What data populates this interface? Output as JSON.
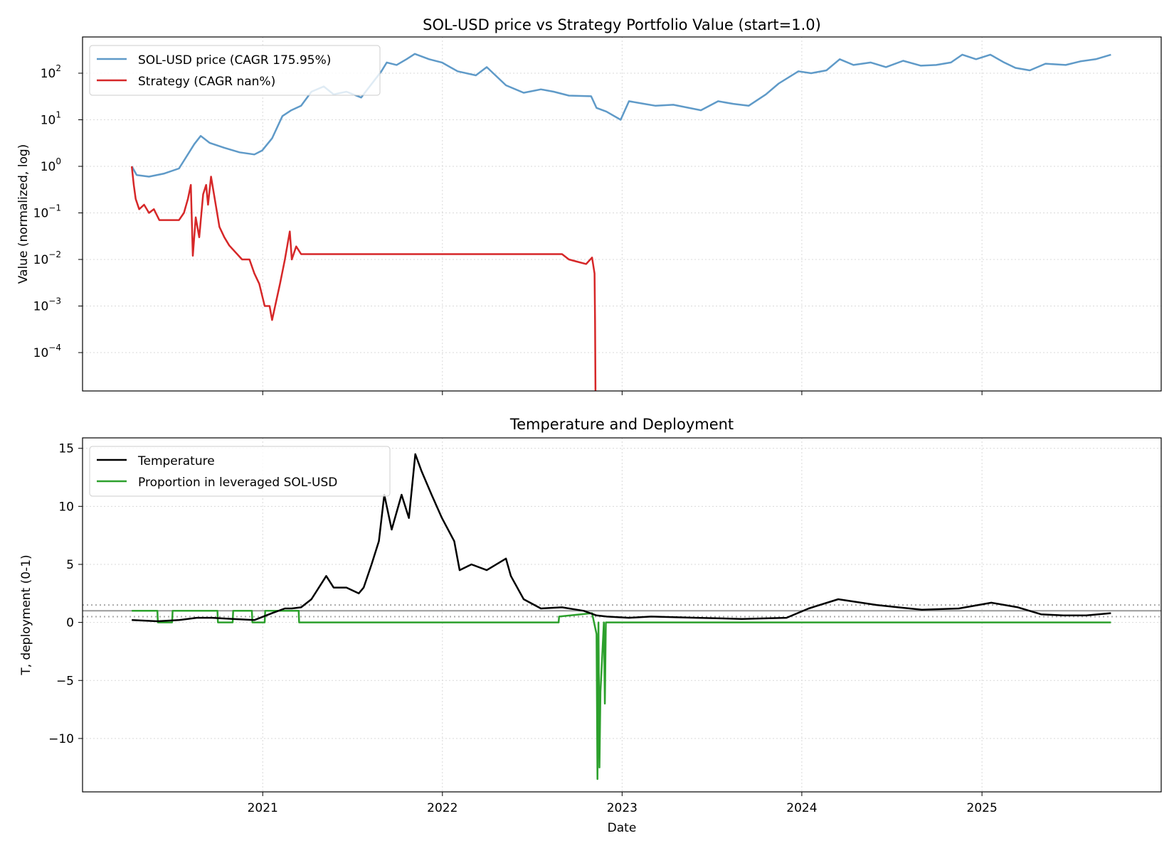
{
  "chart_data": [
    {
      "type": "line",
      "title": "SOL-USD price vs Strategy Portfolio Value (start=1.0)",
      "xlabel": "",
      "ylabel": "Value (normalized, log)",
      "yscale": "log",
      "grid": true,
      "legend_loc": "upper left",
      "xlim": [
        "2020-01-01",
        "2025-12-31"
      ],
      "ylim": [
        1.5e-05,
        600
      ],
      "yticks": [
        {
          "value": 0.0001,
          "base": "10",
          "exp": "−4"
        },
        {
          "value": 0.001,
          "base": "10",
          "exp": "−3"
        },
        {
          "value": 0.01,
          "base": "10",
          "exp": "−2"
        },
        {
          "value": 0.1,
          "base": "10",
          "exp": "−1"
        },
        {
          "value": 1,
          "base": "10",
          "exp": "0"
        },
        {
          "value": 10,
          "base": "10",
          "exp": "1"
        },
        {
          "value": 100,
          "base": "10",
          "exp": "2"
        }
      ],
      "series": [
        {
          "name": "SOL-USD price (CAGR 175.95%)",
          "color": "#5f9ac8",
          "x": [
            "2020-04-10",
            "2020-04-20",
            "2020-05-15",
            "2020-06-15",
            "2020-07-15",
            "2020-08-15",
            "2020-08-28",
            "2020-09-15",
            "2020-10-15",
            "2020-11-15",
            "2020-12-15",
            "2020-12-31",
            "2021-01-20",
            "2021-02-10",
            "2021-02-28",
            "2021-03-20",
            "2021-04-10",
            "2021-05-05",
            "2021-05-25",
            "2021-06-20",
            "2021-07-20",
            "2021-08-05",
            "2021-08-30",
            "2021-09-10",
            "2021-09-30",
            "2021-10-20",
            "2021-11-06",
            "2021-12-05",
            "2021-12-31",
            "2022-02-01",
            "2022-03-10",
            "2022-04-01",
            "2022-05-10",
            "2022-06-15",
            "2022-07-20",
            "2022-08-15",
            "2022-09-15",
            "2022-10-30",
            "2022-11-10",
            "2022-11-30",
            "2022-12-29",
            "2023-01-15",
            "2023-02-15",
            "2023-03-10",
            "2023-04-15",
            "2023-06-10",
            "2023-07-15",
            "2023-08-15",
            "2023-09-15",
            "2023-10-20",
            "2023-11-15",
            "2023-12-25",
            "2024-01-20",
            "2024-02-20",
            "2024-03-18",
            "2024-04-15",
            "2024-05-20",
            "2024-06-20",
            "2024-07-25",
            "2024-08-30",
            "2024-09-30",
            "2024-10-30",
            "2024-11-22",
            "2024-12-20",
            "2025-01-18",
            "2025-02-15",
            "2025-03-10",
            "2025-04-08",
            "2025-05-10",
            "2025-06-20",
            "2025-07-20",
            "2025-08-20",
            "2025-09-20"
          ],
          "values": [
            1.0,
            0.65,
            0.6,
            0.7,
            0.9,
            3.0,
            4.5,
            3.2,
            2.5,
            2.0,
            1.8,
            2.2,
            4.0,
            12.0,
            16.0,
            20.0,
            40.0,
            52.0,
            35.0,
            40.0,
            30.0,
            50.0,
            110.0,
            170.0,
            150.0,
            200.0,
            260.0,
            200.0,
            170.0,
            110.0,
            90.0,
            135.0,
            55.0,
            38.0,
            45.0,
            40.0,
            33.0,
            32.0,
            18.0,
            15.0,
            10.0,
            25.0,
            22.0,
            20.0,
            21.0,
            16.0,
            25.0,
            22.0,
            20.0,
            35.0,
            60.0,
            110.0,
            100.0,
            115.0,
            200.0,
            150.0,
            170.0,
            135.0,
            185.0,
            145.0,
            150.0,
            170.0,
            250.0,
            200.0,
            250.0,
            170.0,
            130.0,
            115.0,
            160.0,
            150.0,
            180.0,
            200.0,
            250.0
          ]
        },
        {
          "name": "Strategy (CAGR nan%)",
          "color": "#d62728",
          "x": [
            "2020-04-10",
            "2020-04-14",
            "2020-04-18",
            "2020-04-25",
            "2020-05-05",
            "2020-05-15",
            "2020-05-25",
            "2020-06-05",
            "2020-07-15",
            "2020-07-25",
            "2020-08-02",
            "2020-08-08",
            "2020-08-12",
            "2020-08-18",
            "2020-08-25",
            "2020-09-02",
            "2020-09-08",
            "2020-09-12",
            "2020-09-18",
            "2020-10-05",
            "2020-10-15",
            "2020-10-25",
            "2020-11-20",
            "2020-12-05",
            "2020-12-15",
            "2020-12-25",
            "2021-01-05",
            "2021-01-15",
            "2021-01-20",
            "2021-02-05",
            "2021-02-15",
            "2021-02-25",
            "2021-03-01",
            "2021-03-10",
            "2021-03-20",
            "2022-09-01",
            "2022-09-15",
            "2022-10-01",
            "2022-10-20",
            "2022-11-01",
            "2022-11-06",
            "2022-11-07",
            "2022-11-08"
          ],
          "values": [
            1.0,
            0.4,
            0.2,
            0.12,
            0.15,
            0.1,
            0.12,
            0.07,
            0.07,
            0.1,
            0.2,
            0.4,
            0.012,
            0.08,
            0.03,
            0.25,
            0.4,
            0.15,
            0.6,
            0.05,
            0.03,
            0.02,
            0.01,
            0.01,
            0.005,
            0.003,
            0.001,
            0.001,
            0.0005,
            0.003,
            0.01,
            0.04,
            0.01,
            0.019,
            0.013,
            0.013,
            0.01,
            0.009,
            0.008,
            0.011,
            0.005,
            0.0005,
            1e-05
          ]
        }
      ]
    },
    {
      "type": "line",
      "title": "Temperature and Deployment",
      "xlabel": "Date",
      "ylabel": "T, deployment (0-1)",
      "grid": true,
      "legend_loc": "upper left",
      "xlim": [
        "2020-01-01",
        "2025-12-31"
      ],
      "ylim": [
        -14.6,
        15.9
      ],
      "yticks": [
        -10,
        -5,
        0,
        5,
        10,
        15
      ],
      "ytick_labels": [
        "−10",
        "−5",
        "0",
        "5",
        "10",
        "15"
      ],
      "xticks": [
        "2021-01-01",
        "2022-01-01",
        "2023-01-01",
        "2024-01-01",
        "2025-01-01"
      ],
      "xtick_labels": [
        "2021",
        "2022",
        "2023",
        "2024",
        "2025"
      ],
      "hlines": [
        {
          "value": 1.5,
          "style": "dotted",
          "color": "#aaaaaa"
        },
        {
          "value": 1.0,
          "style": "solid",
          "color": "#999999"
        },
        {
          "value": 0.5,
          "style": "dotted",
          "color": "#aaaaaa"
        }
      ],
      "series": [
        {
          "name": "Temperature",
          "color": "#000000",
          "x": [
            "2020-04-10",
            "2020-06-01",
            "2020-07-15",
            "2020-08-20",
            "2020-09-20",
            "2020-11-01",
            "2020-12-15",
            "2021-01-20",
            "2021-02-15",
            "2021-03-01",
            "2021-03-20",
            "2021-04-10",
            "2021-05-10",
            "2021-05-25",
            "2021-06-20",
            "2021-07-15",
            "2021-07-25",
            "2021-08-10",
            "2021-08-25",
            "2021-09-05",
            "2021-09-20",
            "2021-10-10",
            "2021-10-25",
            "2021-11-07",
            "2021-11-20",
            "2021-12-10",
            "2021-12-31",
            "2022-01-25",
            "2022-02-05",
            "2022-03-01",
            "2022-04-01",
            "2022-05-10",
            "2022-05-20",
            "2022-06-15",
            "2022-07-20",
            "2022-09-01",
            "2022-10-15",
            "2022-11-10",
            "2022-12-01",
            "2023-01-15",
            "2023-03-01",
            "2023-06-01",
            "2023-09-01",
            "2023-12-01",
            "2024-01-15",
            "2024-03-15",
            "2024-06-01",
            "2024-07-15",
            "2024-09-01",
            "2024-11-15",
            "2025-01-20",
            "2025-03-15",
            "2025-05-01",
            "2025-06-15",
            "2025-08-01",
            "2025-09-20"
          ],
          "values": [
            0.2,
            0.1,
            0.2,
            0.4,
            0.4,
            0.3,
            0.2,
            0.8,
            1.2,
            1.2,
            1.3,
            2.0,
            4.0,
            3.0,
            3.0,
            2.5,
            3.0,
            5.0,
            7.0,
            11.0,
            8.0,
            11.0,
            9.0,
            14.5,
            13.0,
            11.0,
            9.0,
            7.0,
            4.5,
            5.0,
            4.5,
            5.5,
            4.0,
            2.0,
            1.2,
            1.3,
            1.0,
            0.6,
            0.5,
            0.4,
            0.5,
            0.4,
            0.3,
            0.4,
            1.2,
            2.0,
            1.5,
            1.3,
            1.1,
            1.2,
            1.7,
            1.3,
            0.7,
            0.6,
            0.6,
            0.8
          ]
        },
        {
          "name": "Proportion in leveraged SOL-USD",
          "color": "#2ca02c",
          "x": [
            "2020-04-10",
            "2020-06-01",
            "2020-06-02",
            "2020-07-01",
            "2020-07-02",
            "2020-10-01",
            "2020-10-02",
            "2020-11-01",
            "2020-11-02",
            "2020-12-10",
            "2020-12-11",
            "2021-01-05",
            "2021-01-06",
            "2021-03-15",
            "2021-03-16",
            "2022-08-25",
            "2022-08-26",
            "2022-11-01",
            "2022-11-10",
            "2022-11-12",
            "2022-11-14",
            "2022-11-16",
            "2022-11-18",
            "2022-11-25",
            "2022-11-27",
            "2022-11-29",
            "2022-12-05",
            "2022-12-06",
            "2025-09-20"
          ],
          "values": [
            1,
            1,
            0,
            0,
            1,
            1,
            0,
            0,
            1,
            1,
            0,
            0,
            1,
            1,
            0,
            0,
            0.5,
            0.8,
            -1,
            -13.5,
            0,
            -12.5,
            -6,
            0,
            -7,
            0,
            0,
            0,
            0
          ]
        }
      ]
    }
  ]
}
